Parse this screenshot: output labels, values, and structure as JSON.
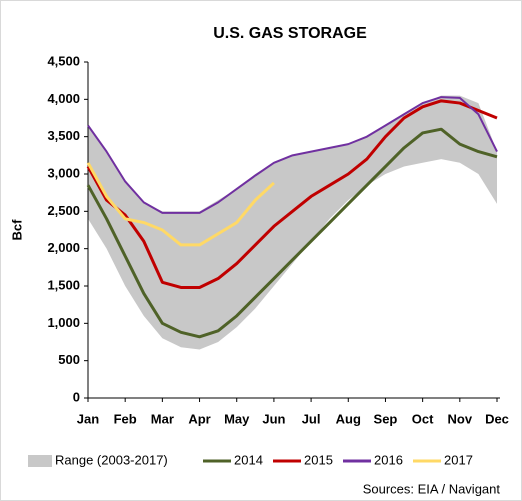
{
  "chart_data": {
    "type": "line",
    "title": "U.S. GAS STORAGE",
    "ylabel": "Bcf",
    "source": "Sources: EIA / Navigant",
    "x": [
      0,
      0.5,
      1,
      1.5,
      2,
      2.5,
      3,
      3.5,
      4,
      4.5,
      5,
      5.5,
      6,
      6.5,
      7,
      7.5,
      8,
      8.5,
      9,
      9.5,
      10,
      10.5,
      11
    ],
    "xlim": [
      0,
      11
    ],
    "xticks": [
      {
        "value": 0,
        "label": "Jan"
      },
      {
        "value": 1,
        "label": "Feb"
      },
      {
        "value": 2,
        "label": "Mar"
      },
      {
        "value": 3,
        "label": "Apr"
      },
      {
        "value": 4,
        "label": "May"
      },
      {
        "value": 5,
        "label": "Jun"
      },
      {
        "value": 6,
        "label": "Jul"
      },
      {
        "value": 7,
        "label": "Aug"
      },
      {
        "value": 8,
        "label": "Sep"
      },
      {
        "value": 9,
        "label": "Oct"
      },
      {
        "value": 10,
        "label": "Nov"
      },
      {
        "value": 11,
        "label": "Dec"
      }
    ],
    "ylim": [
      0,
      4500
    ],
    "yticks": [
      0,
      500,
      {
        "value": 1000,
        "label": "1,000"
      },
      {
        "value": 1500,
        "label": "1,500"
      },
      {
        "value": 2000,
        "label": "2,000"
      },
      {
        "value": 2500,
        "label": "2,500"
      },
      {
        "value": 3000,
        "label": "3,000"
      },
      {
        "value": 3500,
        "label": "3,500"
      },
      {
        "value": 4000,
        "label": "4,000"
      },
      {
        "value": 4500,
        "label": "4,500"
      }
    ],
    "grid": false,
    "legend": "bottom",
    "range": {
      "name": "Range (2003-2017)",
      "color": "#c8c8c8",
      "lower": [
        2400,
        2000,
        1500,
        1100,
        800,
        680,
        650,
        750,
        950,
        1200,
        1500,
        1800,
        2100,
        2400,
        2650,
        2850,
        3000,
        3100,
        3150,
        3200,
        3150,
        3000,
        2600
      ],
      "upper": [
        3650,
        3300,
        2900,
        2620,
        2500,
        2500,
        2500,
        2650,
        2800,
        3000,
        3150,
        3250,
        3300,
        3350,
        3400,
        3500,
        3650,
        3800,
        3950,
        4050,
        4050,
        3950,
        3300
      ]
    },
    "series": [
      {
        "name": "2014",
        "color": "#4f6228",
        "values": [
          2850,
          2400,
          1900,
          1400,
          1000,
          880,
          820,
          900,
          1100,
          1350,
          1600,
          1850,
          2100,
          2350,
          2600,
          2850,
          3100,
          3350,
          3550,
          3600,
          3400,
          3300,
          3230
        ]
      },
      {
        "name": "2015",
        "color": "#c00000",
        "values": [
          3100,
          2650,
          2450,
          2100,
          1550,
          1480,
          1480,
          1600,
          1800,
          2050,
          2300,
          2500,
          2700,
          2850,
          3000,
          3200,
          3500,
          3750,
          3900,
          3980,
          3950,
          3850,
          3750
        ]
      },
      {
        "name": "2016",
        "color": "#7030a0",
        "values": [
          3650,
          3300,
          2900,
          2620,
          2480,
          2480,
          2480,
          2620,
          2800,
          2980,
          3150,
          3250,
          3300,
          3350,
          3400,
          3500,
          3650,
          3800,
          3950,
          4030,
          4020,
          3800,
          3300
        ]
      },
      {
        "name": "2017",
        "color": "#ffd966",
        "values": [
          3150,
          2700,
          2400,
          2350,
          2250,
          2050,
          2050,
          2200,
          2350,
          2650,
          2880,
          null,
          null,
          null,
          null,
          null,
          null,
          null,
          null,
          null,
          null,
          null,
          null
        ]
      }
    ]
  }
}
